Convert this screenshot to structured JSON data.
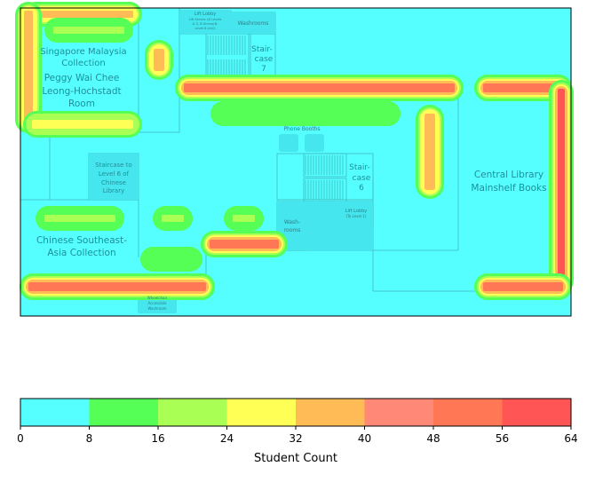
{
  "map": {
    "rooms": {
      "sg_my_1": "Singapore Malaysia",
      "sg_my_2": "Collection",
      "peggy_1": "Peggy Wai Chee",
      "peggy_2": "Leong-Hochstadt",
      "peggy_3": "Room",
      "chinese_sea_1": "Chinese Southeast-",
      "chinese_sea_2": "Asia Collection",
      "central_1": "Central Library",
      "central_2": "Mainshelf Books",
      "stair7_1": "Stair-",
      "stair7_2": "case",
      "stair7_3": "7",
      "stair6_1": "Stair-",
      "stair6_2": "case",
      "stair6_3": "6",
      "staircase_l6_1": "Staircase to",
      "staircase_l6_2": "Level 6 of",
      "staircase_l6_3": "Chinese",
      "staircase_l6_4": "Library",
      "phone_booths": "Phone Booths",
      "washrooms_top": "Washrooms",
      "washrooms_mid_1": "Wash-",
      "washrooms_mid_2": "rooms",
      "lift_top_1": "Lift Lobby",
      "lift_top_2": "Lift Serves L8 Levels",
      "lift_top_3": "& 5, B-Shima(B-",
      "lift_top_4": "Level 6 only)",
      "lift_mid_1": "Lift Lobby",
      "lift_mid_2": "(To Level 1)",
      "access_wash_1": "Wheelchair",
      "access_wash_2": "Accessible",
      "access_wash_3": "Washroom"
    },
    "colorbar": {
      "label": "Student Count",
      "bounds": [
        0,
        8,
        16,
        24,
        32,
        40,
        48,
        56,
        64
      ],
      "colors": [
        "#55ffff",
        "#55ff55",
        "#aaff55",
        "#ffff55",
        "#ffbb55",
        "#ff8877",
        "#ff7755",
        "#ff5555"
      ]
    }
  }
}
